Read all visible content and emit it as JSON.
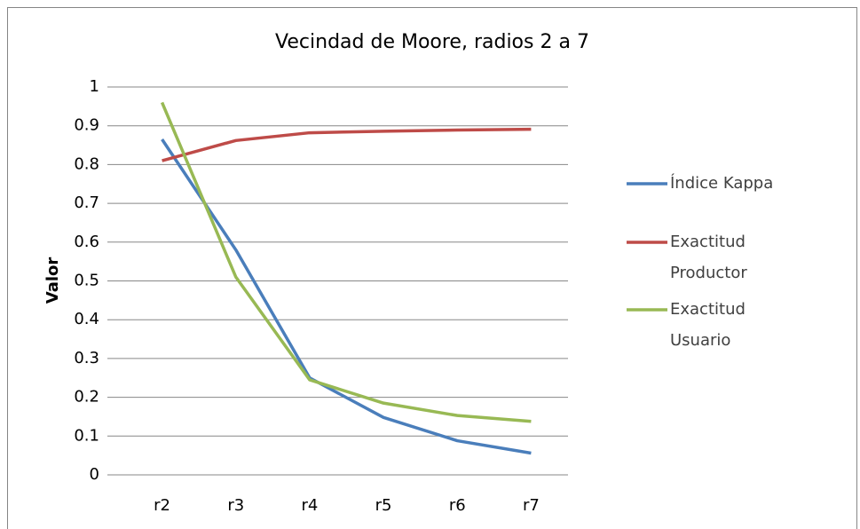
{
  "chart_data": {
    "type": "line",
    "title": "Vecindad de Moore, radios 2 a 7",
    "y_label": "Valor",
    "categories": [
      "r2",
      "r3",
      "r4",
      "r5",
      "r6",
      "r7"
    ],
    "series": [
      {
        "name": "Índice Kappa",
        "color": "#4a7ebb",
        "values": [
          0.865,
          0.58,
          0.25,
          0.148,
          0.088,
          0.056
        ]
      },
      {
        "name": "Exactitud Productor",
        "color": "#be4b48",
        "values": [
          0.81,
          0.862,
          0.882,
          0.886,
          0.889,
          0.891
        ]
      },
      {
        "name": "Exactitud Usuario",
        "color": "#98b954",
        "values": [
          0.96,
          0.51,
          0.245,
          0.185,
          0.153,
          0.138
        ]
      }
    ],
    "ylim": [
      0,
      1
    ],
    "yticks": [
      0,
      {
        "value": 0.1,
        "label": "0.1"
      },
      {
        "value": 0.2,
        "label": "0.2"
      },
      {
        "value": 0.3,
        "label": "0.3"
      },
      {
        "value": 0.4,
        "label": "0.4"
      },
      {
        "value": 0.5,
        "label": "0.5"
      },
      {
        "value": 0.6,
        "label": "0.6"
      },
      {
        "value": 0.7,
        "label": "0.7"
      },
      {
        "value": 0.8,
        "label": "0.8"
      },
      {
        "value": 0.9,
        "label": "0.9"
      },
      1
    ],
    "grid": true,
    "legend": "right"
  }
}
